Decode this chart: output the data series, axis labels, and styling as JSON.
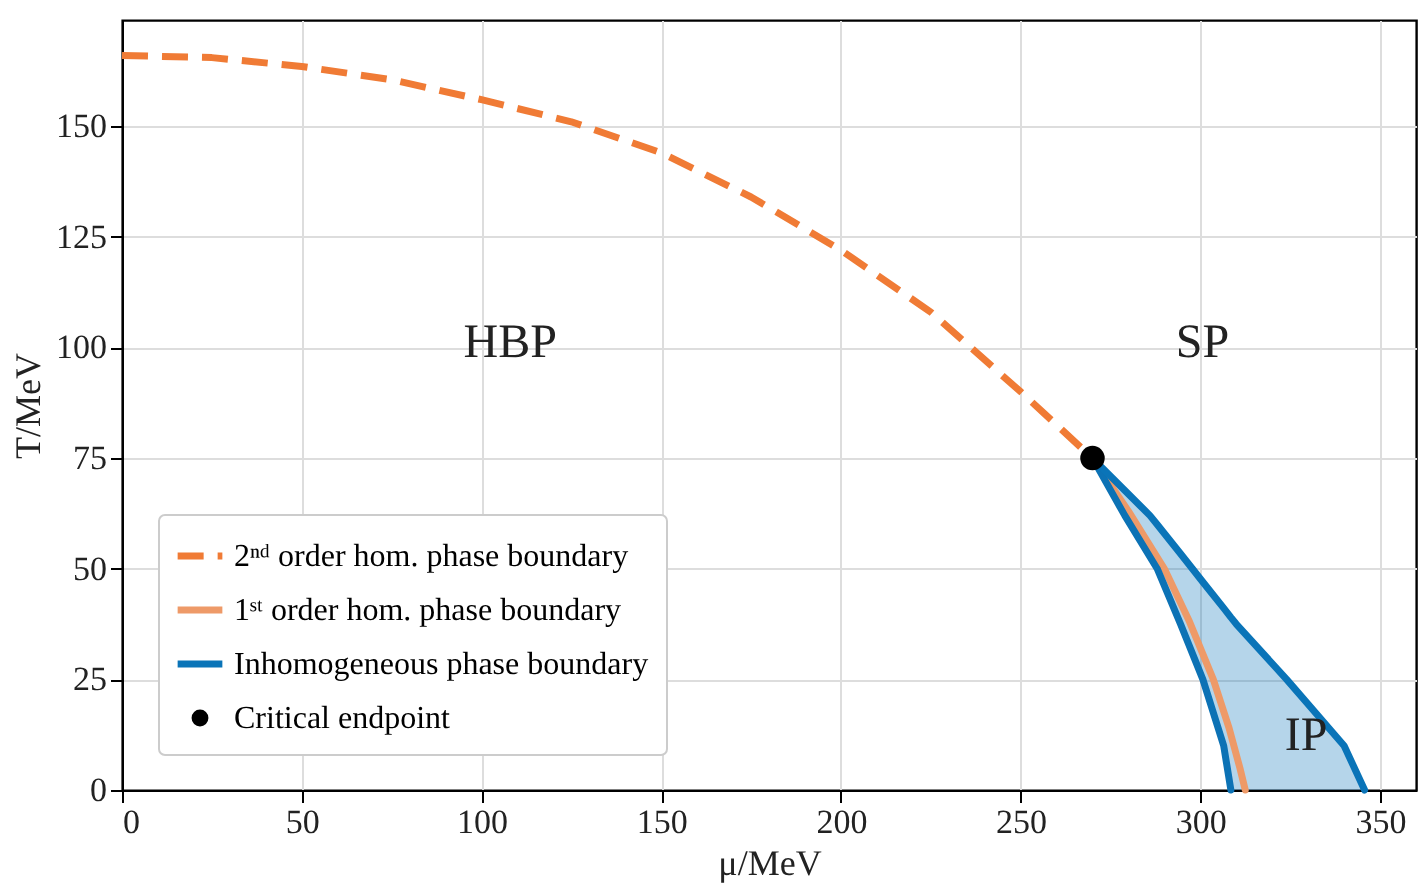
{
  "chart_data": {
    "type": "line",
    "xlabel": "μ/MeV",
    "ylabel": "T/MeV",
    "xlim": [
      0,
      360
    ],
    "ylim": [
      0,
      174
    ],
    "xticks": [
      0,
      50,
      100,
      150,
      200,
      250,
      300,
      350
    ],
    "yticks": [
      0,
      25,
      50,
      75,
      100,
      125,
      150
    ],
    "grid": true,
    "legend": "bottom left",
    "annotations": [
      "HBP",
      "SP",
      "IP"
    ],
    "series": [
      {
        "name": "2ⁿᵈ order hom. phase boundary",
        "color": "#f07b35",
        "line_style": "dashed",
        "x": [
          0,
          25,
          50,
          75,
          100,
          125,
          150,
          175,
          200,
          225,
          250,
          270
        ],
        "values": [
          166,
          165.5,
          163.5,
          160.5,
          156,
          151,
          144,
          134,
          122,
          108,
          90,
          75
        ]
      },
      {
        "name": "1ˢᵗ order hom. phase boundary",
        "color": "#ee9a68",
        "line_style": "solid",
        "x": [
          270,
          280,
          290,
          297,
          303.6,
          308,
          311,
          312.5
        ],
        "values": [
          75,
          63,
          50,
          38,
          25,
          14,
          5,
          0
        ]
      },
      {
        "color": "#0c72b5",
        "line_style": "solid",
        "x": [
          270,
          279,
          288,
          294.5,
          300.7,
          306.5,
          308.5
        ],
        "values": [
          75,
          62,
          50,
          37.5,
          25,
          10,
          0
        ]
      },
      {
        "name": "Inhomogeneous phase boundary",
        "color": "#0a74b8",
        "line_style": "solid",
        "x": [
          270,
          279,
          286,
          288,
          294.5,
          297.8,
          300.7,
          306.5,
          308.5,
          310,
          324,
          340,
          345.7
        ],
        "values": [
          75,
          67.7,
          62,
          60,
          53.4,
          50,
          47,
          41.1,
          39,
          37.5,
          25,
          10,
          0
        ],
        "lower": [
          75,
          62,
          52.7,
          50,
          37.5,
          30.8,
          25,
          10,
          0,
          0,
          0,
          0,
          0
        ],
        "upper": [
          75,
          67.7,
          62,
          60,
          53.4,
          50,
          47,
          41.1,
          39,
          37.5,
          25,
          10,
          0
        ]
      },
      {
        "name": "Critical endpoint",
        "type": "scatter",
        "marker": "circle",
        "color": "#000000",
        "x": [
          270
        ],
        "values": [
          75
        ]
      }
    ]
  }
}
